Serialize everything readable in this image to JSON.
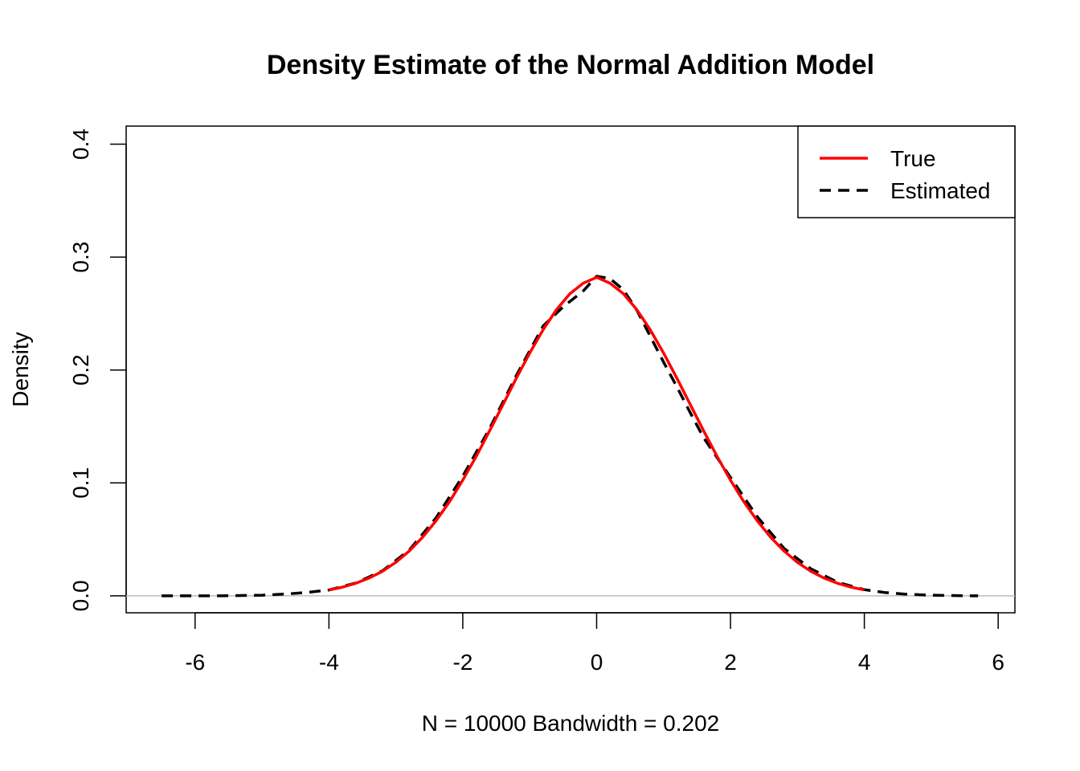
{
  "chart_data": {
    "type": "line",
    "title": "Density Estimate of the Normal Addition Model",
    "xlabel": "N = 10000   Bandwidth = 0.202",
    "ylabel": "Density",
    "xlim": [
      -7.03,
      6.25
    ],
    "ylim": [
      -0.015,
      0.416
    ],
    "x_ticks": [
      -6,
      -4,
      -2,
      0,
      2,
      4,
      6
    ],
    "x_tick_labels": [
      "-6",
      "-4",
      "-2",
      "0",
      "2",
      "4",
      "6"
    ],
    "y_ticks": [
      0.0,
      0.1,
      0.2,
      0.3,
      0.4
    ],
    "y_tick_labels": [
      "0.0",
      "0.1",
      "0.2",
      "0.3",
      "0.4"
    ],
    "zero_line": true,
    "grid": false,
    "legend": {
      "position": "top-right",
      "entries": [
        "True",
        "Estimated"
      ]
    },
    "series": [
      {
        "name": "True",
        "color": "#ff0000",
        "style": "solid",
        "x": [
          -4.0,
          -3.8,
          -3.6,
          -3.4,
          -3.2,
          -3.0,
          -2.8,
          -2.6,
          -2.4,
          -2.2,
          -2.0,
          -1.8,
          -1.6,
          -1.4,
          -1.2,
          -1.0,
          -0.8,
          -0.6,
          -0.4,
          -0.2,
          0.0,
          0.2,
          0.4,
          0.6,
          0.8,
          1.0,
          1.2,
          1.4,
          1.6,
          1.8,
          2.0,
          2.2,
          2.4,
          2.6,
          2.8,
          3.0,
          3.2,
          3.4,
          3.6,
          3.8,
          4.0
        ],
        "y": [
          0.0052,
          0.0077,
          0.0111,
          0.0157,
          0.0218,
          0.0297,
          0.0397,
          0.0519,
          0.0664,
          0.0833,
          0.1025,
          0.1235,
          0.146,
          0.1693,
          0.1927,
          0.215,
          0.2357,
          0.2534,
          0.2675,
          0.2769,
          0.2821,
          0.2769,
          0.2675,
          0.2534,
          0.2357,
          0.215,
          0.1927,
          0.1693,
          0.146,
          0.1235,
          0.1025,
          0.0833,
          0.0664,
          0.0519,
          0.0397,
          0.0297,
          0.0218,
          0.0157,
          0.0111,
          0.0077,
          0.0052
        ]
      },
      {
        "name": "Estimated",
        "color": "#000000",
        "style": "dashed",
        "x": [
          -6.5,
          -6.0,
          -5.5,
          -5.0,
          -4.6,
          -4.3,
          -4.0,
          -3.6,
          -3.2,
          -2.8,
          -2.4,
          -2.0,
          -1.6,
          -1.2,
          -0.8,
          -0.5,
          -0.2,
          0.0,
          0.2,
          0.4,
          0.6,
          0.8,
          1.0,
          1.2,
          1.4,
          1.6,
          2.0,
          2.4,
          2.8,
          3.2,
          3.6,
          4.0,
          4.3,
          4.6,
          5.0,
          5.5,
          5.7
        ],
        "y": [
          0.0,
          0.0,
          0.0001,
          0.0006,
          0.0018,
          0.0032,
          0.0052,
          0.0113,
          0.0222,
          0.0405,
          0.069,
          0.106,
          0.148,
          0.195,
          0.239,
          0.256,
          0.27,
          0.283,
          0.281,
          0.271,
          0.253,
          0.23,
          0.207,
          0.185,
          0.162,
          0.14,
          0.105,
          0.07,
          0.042,
          0.024,
          0.012,
          0.0055,
          0.003,
          0.0015,
          0.0006,
          0.0001,
          0.0
        ]
      }
    ]
  }
}
